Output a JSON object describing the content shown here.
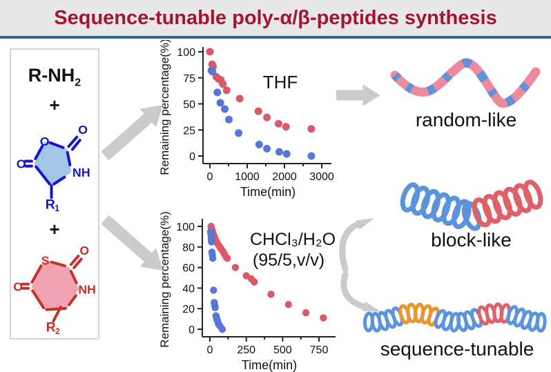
{
  "header": {
    "title": "Sequence-tunable poly-α/β-peptides synthesis"
  },
  "panel": {
    "amine_main": "R-NH",
    "amine_sub": "2",
    "plus": "+",
    "nca": {
      "o_exo_top": "O",
      "o_ring": "O",
      "o_exo_left": "O",
      "nh": "NH",
      "r_main": "R",
      "r_sub": "1"
    },
    "thiolactone": {
      "s": "S",
      "o_exo_top": "O",
      "o_exo_left": "O",
      "nh": "NH",
      "r_main": "R",
      "r_sub": "2"
    }
  },
  "chart_data": [
    {
      "type": "scatter",
      "title_lines": [
        "THF"
      ],
      "xlabel": "Time(min)",
      "ylabel": "Remaining percentage(%)",
      "xlim": [
        0,
        3000
      ],
      "ylim": [
        0,
        100
      ],
      "xticks": [
        0,
        1000,
        2000,
        3000
      ],
      "xticks_minor": [
        500,
        1500,
        2500
      ],
      "yticks": [
        0,
        25,
        50,
        75,
        100
      ],
      "legend": "none",
      "grid": false,
      "series": [
        {
          "name": "red-monomer",
          "color": "#d85a68",
          "points": [
            [
              0,
              100
            ],
            [
              60,
              88
            ],
            [
              85,
              86
            ],
            [
              170,
              76
            ],
            [
              230,
              74
            ],
            [
              290,
              73
            ],
            [
              350,
              69
            ],
            [
              450,
              63
            ],
            [
              800,
              55
            ],
            [
              1300,
              43
            ],
            [
              1530,
              37
            ],
            [
              1840,
              31
            ],
            [
              2040,
              28
            ],
            [
              2720,
              26
            ]
          ]
        },
        {
          "name": "blue-monomer",
          "color": "#5875d8",
          "points": [
            [
              40,
              82
            ],
            [
              70,
              81
            ],
            [
              200,
              61
            ],
            [
              280,
              51
            ],
            [
              400,
              45
            ],
            [
              510,
              35
            ],
            [
              770,
              22
            ],
            [
              1320,
              11
            ],
            [
              1530,
              7
            ],
            [
              1860,
              4
            ],
            [
              2060,
              2
            ],
            [
              2720,
              0
            ]
          ]
        }
      ]
    },
    {
      "type": "scatter",
      "title_lines": [
        "CHCl₃/H₂O",
        "(95/5,v/v)"
      ],
      "xlabel": "Time(min)",
      "ylabel": "Remaining percentage(%)",
      "xlim": [
        0,
        750
      ],
      "ylim": [
        0,
        100
      ],
      "xticks": [
        0,
        250,
        500,
        750
      ],
      "xticks_minor": [
        125,
        375,
        625
      ],
      "yticks": [
        0,
        20,
        40,
        60,
        80,
        100
      ],
      "legend": "none",
      "grid": false,
      "series": [
        {
          "name": "red-monomer",
          "color": "#d85a68",
          "points": [
            [
              8,
              100
            ],
            [
              12,
              98
            ],
            [
              16,
              96
            ],
            [
              20,
              94
            ],
            [
              25,
              92
            ],
            [
              30,
              90
            ],
            [
              35,
              88
            ],
            [
              42,
              86
            ],
            [
              50,
              84
            ],
            [
              58,
              82
            ],
            [
              68,
              80
            ],
            [
              78,
              78
            ],
            [
              88,
              76
            ],
            [
              100,
              73
            ],
            [
              112,
              70
            ],
            [
              120,
              69
            ],
            [
              175,
              60
            ],
            [
              250,
              52
            ],
            [
              285,
              49
            ],
            [
              305,
              46
            ],
            [
              420,
              34
            ],
            [
              540,
              24
            ],
            [
              660,
              16
            ],
            [
              780,
              11
            ]
          ]
        },
        {
          "name": "blue-monomer",
          "color": "#5875d8",
          "points": [
            [
              5,
              95
            ],
            [
              7,
              92
            ],
            [
              9,
              88
            ],
            [
              11,
              85
            ],
            [
              14,
              75
            ],
            [
              17,
              72
            ],
            [
              20,
              69
            ],
            [
              25,
              38
            ],
            [
              30,
              26
            ],
            [
              33,
              23
            ],
            [
              36,
              21
            ],
            [
              42,
              13
            ],
            [
              46,
              11
            ],
            [
              50,
              9
            ],
            [
              55,
              7
            ],
            [
              60,
              5
            ],
            [
              70,
              3
            ],
            [
              85,
              0
            ]
          ]
        }
      ]
    }
  ],
  "products": [
    {
      "label": "random-like",
      "style": "random-ribbon",
      "segments": [
        {
          "color": "pink"
        },
        {
          "color": "blue"
        }
      ]
    },
    {
      "label": "block-like",
      "style": "helix",
      "segments": [
        {
          "color": "blue",
          "loops": 7
        },
        {
          "color": "red",
          "loops": 6
        }
      ]
    },
    {
      "label": "sequence-tunable",
      "style": "helix",
      "segments": [
        {
          "color": "blue",
          "loops": 5
        },
        {
          "color": "orange",
          "loops": 5
        },
        {
          "color": "blue",
          "loops": 6
        },
        {
          "color": "red",
          "loops": 4
        },
        {
          "color": "blue",
          "loops": 5
        }
      ]
    }
  ],
  "colors": {
    "title": "#a31430",
    "divider": "#2e6b80",
    "header_bg": "#e8e8e8",
    "arrow_gray": "#cbcbcb",
    "struct_blue": "#1515cd",
    "struct_blue_fill": "#a3c6e6",
    "struct_red": "#c33127",
    "struct_red_fill": "#f0a3b2",
    "pink": "#ed8a9c",
    "blue": "#5b93dc",
    "red": "#e0606a",
    "orange": "#e8962e"
  }
}
